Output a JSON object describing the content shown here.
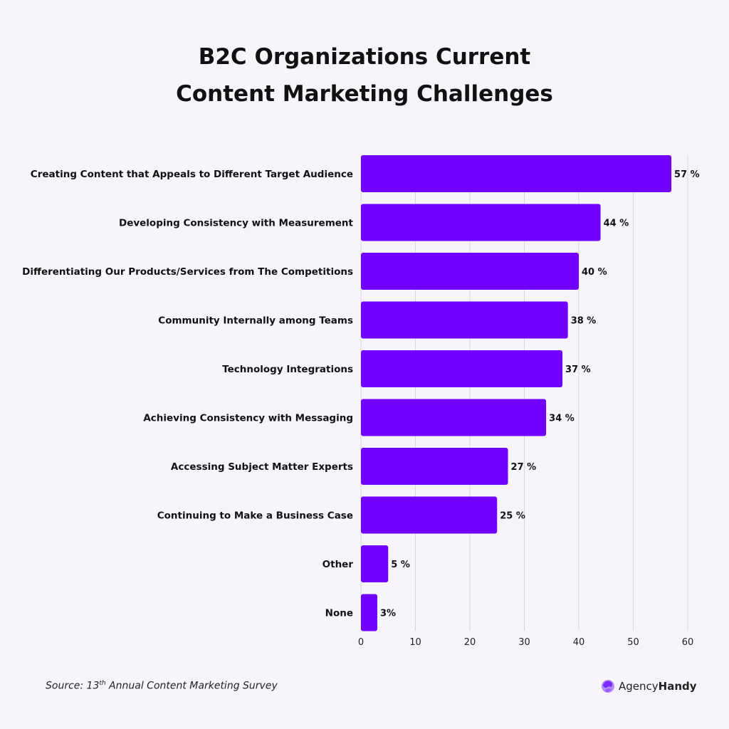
{
  "title_line1": "B2C Organizations Current",
  "title_line2": "Content Marketing Challenges",
  "source": {
    "prefix": "Source: 13",
    "sup": "th",
    "suffix": " Annual Content Marketing Survey"
  },
  "logo": {
    "text_light": "Agency",
    "text_bold": "Handy"
  },
  "colors": {
    "bar": "#7000ff",
    "background": "#f7f4fc",
    "grid": "#d9d6df"
  },
  "chart_data": {
    "type": "bar",
    "orientation": "horizontal",
    "categories": [
      "Creating Content that Appeals to Different Target Audience",
      "Developing Consistency with Measurement",
      "Differentiating Our Products/Services from The Competitions",
      "Community Internally among Teams",
      "Technology Integrations",
      "Achieving Consistency with Messaging",
      "Accessing Subject Matter Experts",
      "Continuing to Make a Business Case",
      "Other",
      "None"
    ],
    "values": [
      57,
      44,
      40,
      38,
      37,
      34,
      27,
      25,
      5,
      3
    ],
    "data_labels": [
      "57 %",
      "44 %",
      "40 %",
      "38 %",
      "37 %",
      "34 %",
      "27 %",
      "25 %",
      "5 %",
      "3%"
    ],
    "xlim": [
      0,
      60
    ],
    "xticks": [
      "0",
      "10",
      "20",
      "30",
      "40",
      "50",
      "60"
    ],
    "grid": "vertical",
    "title": "B2C Organizations Current Content Marketing Challenges"
  }
}
